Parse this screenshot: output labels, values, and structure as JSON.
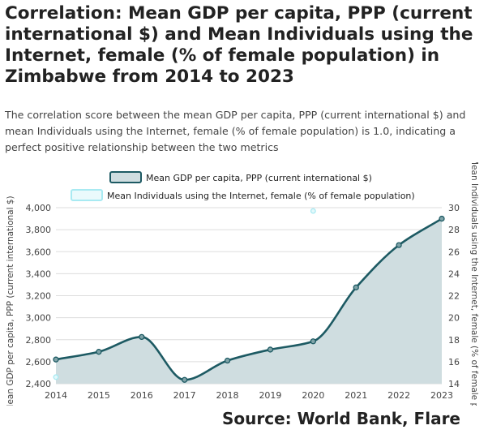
{
  "header": {
    "title": "Correlation: Mean GDP per capita, PPP (current international $) and Mean Individuals using the Internet, female (% of female population) in Zimbabwe from 2014 to 2023",
    "subtitle": "The correlation score between the mean GDP per capita, PPP (current international $) and mean Individuals using the Internet, female (% of female population) is 1.0, indicating a perfect positive relationship between the two metrics"
  },
  "source": "Source: World Bank, Flare",
  "colors": {
    "series1_line": "#1d5a63",
    "series1_fill": "#cfdde0",
    "series2_line": "#a8eaf2",
    "grid": "#dddddd",
    "axis_text": "#444444"
  },
  "chart_data": {
    "type": "line",
    "x": [
      2014,
      2015,
      2016,
      2017,
      2018,
      2019,
      2020,
      2021,
      2022,
      2023
    ],
    "series": [
      {
        "name": "Mean GDP per capita, PPP (current international $)",
        "axis": "left",
        "values": [
          2620,
          2690,
          2825,
          2435,
          2610,
          2710,
          2785,
          3275,
          3660,
          3900
        ]
      },
      {
        "name": "Mean Individuals using the Internet, female (% of female population)",
        "axis": "right",
        "values": [
          14.6,
          null,
          null,
          null,
          null,
          null,
          29.7,
          null,
          null,
          null
        ]
      }
    ],
    "ylabel_left": "Mean GDP per capita, PPP (current international $)",
    "ylabel_right": "Mean Individuals using the Internet, female (% of female population)",
    "ylim_left": [
      2400,
      4000
    ],
    "yticks_left": [
      "2,400",
      "2,600",
      "2,800",
      "3,000",
      "3,200",
      "3,400",
      "3,600",
      "3,800",
      "4,000"
    ],
    "ylim_right": [
      14,
      30
    ],
    "yticks_right": [
      "14",
      "16",
      "18",
      "20",
      "22",
      "24",
      "26",
      "28",
      "30"
    ],
    "legend": "top-center",
    "grid": true
  }
}
